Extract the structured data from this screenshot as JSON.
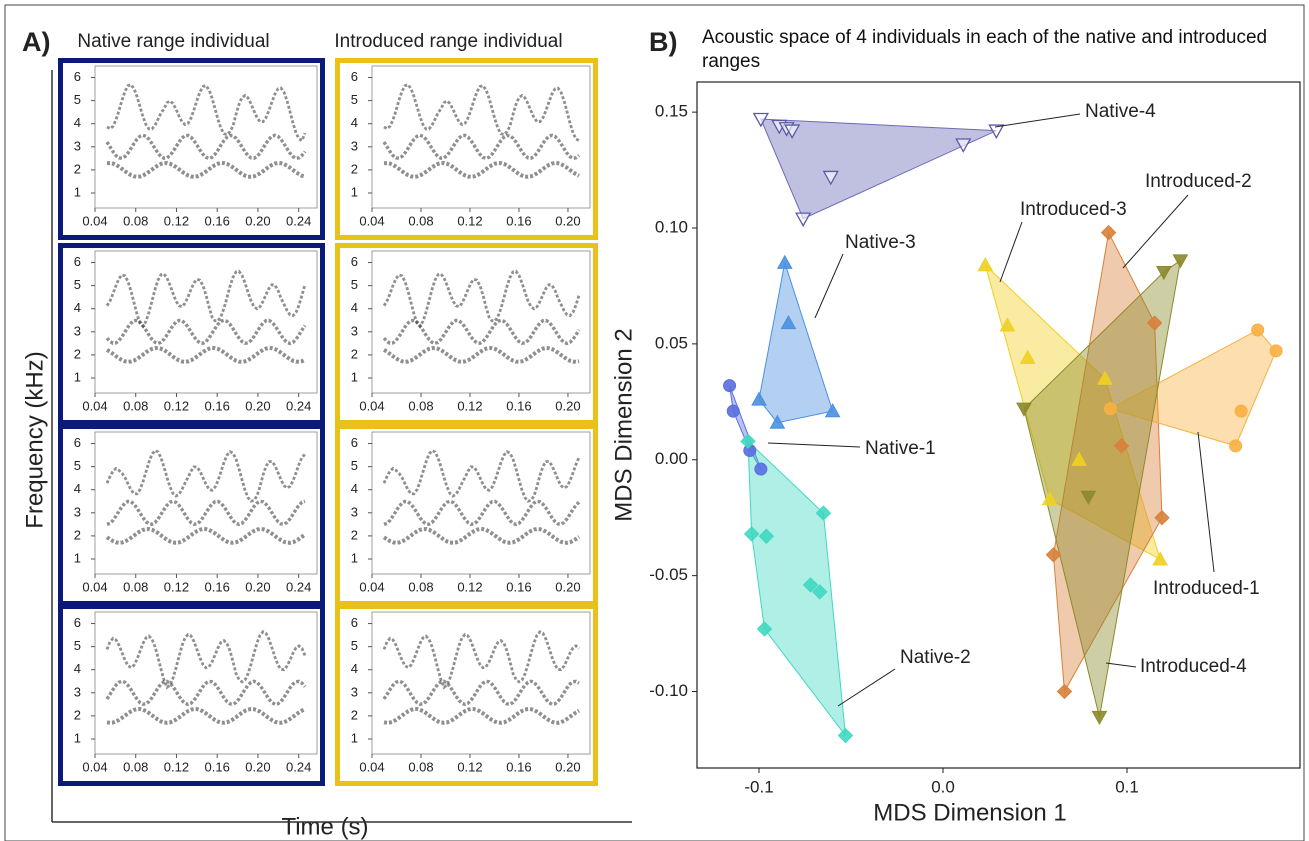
{
  "chart_data": [
    {
      "type": "spectrogram_grid",
      "label": "A)",
      "ylabel": "Frequency (kHz)",
      "xlabel": "Time (s)",
      "columns": [
        {
          "title": "Native range individual",
          "color": "#0b1a78",
          "xlim": [
            0.04,
            0.258
          ],
          "xticks": [
            0.04,
            0.08,
            0.12,
            0.16,
            {
              "value": 0.2,
              "label": "0.20"
            },
            0.24
          ],
          "ylim": [
            0.35,
            6.5
          ],
          "yticks": [
            1,
            2,
            3,
            4,
            5,
            6
          ]
        },
        {
          "title": "Introduced range individual",
          "color": "#e8c21a",
          "xlim": [
            0.04,
            0.218
          ],
          "xticks": [
            0.04,
            0.08,
            0.12,
            0.16,
            {
              "value": 0.2,
              "label": "0.20"
            }
          ],
          "ylim": [
            0.35,
            6.5
          ],
          "yticks": [
            1,
            2,
            3,
            4,
            5,
            6
          ]
        }
      ]
    },
    {
      "type": "scatter",
      "label": "B)",
      "title": "Acoustic space of 4 individuals in each of the native and introduced ranges",
      "xlabel": "MDS Dimension 1",
      "ylabel": "MDS Dimension 2",
      "xlim": [
        -0.1337,
        0.194
      ],
      "ylim": [
        -0.133,
        0.163
      ],
      "xticks": [
        {
          "value": -0.1,
          "label": "-0.1"
        },
        {
          "value": 0,
          "label": "0.0"
        },
        {
          "value": 0.1,
          "label": "0.1"
        }
      ],
      "yticks": [
        {
          "value": -0.1,
          "label": "-0.10"
        },
        {
          "value": -0.05,
          "label": "-0.05"
        },
        {
          "value": 0,
          "label": "0.00"
        },
        {
          "value": 0.05,
          "label": "0.05"
        },
        {
          "value": 0.1,
          "label": "0.10"
        },
        {
          "value": 0.15,
          "label": "0.15"
        }
      ],
      "series": [
        {
          "name": "Native-4",
          "color": "#6a6ab8",
          "marker": "triangle-down-open",
          "x": [
            -0.099,
            -0.089,
            -0.085,
            -0.082,
            -0.061,
            -0.076,
            0.011,
            0.029
          ],
          "y": [
            0.147,
            0.144,
            0.143,
            0.142,
            0.122,
            0.104,
            0.136,
            0.142
          ]
        },
        {
          "name": "Native-3",
          "color": "#4a90e0",
          "marker": "triangle-up",
          "x": [
            -0.086,
            -0.1,
            -0.09,
            -0.06,
            -0.084
          ],
          "y": [
            0.085,
            0.026,
            0.016,
            0.021,
            0.059
          ]
        },
        {
          "name": "Native-1",
          "color": "#5a6ee0",
          "marker": "circle",
          "x": [
            -0.116,
            -0.114,
            -0.105,
            -0.099
          ],
          "y": [
            0.032,
            0.021,
            0.004,
            -0.004
          ]
        },
        {
          "name": "Native-2",
          "color": "#40d8c0",
          "marker": "diamond",
          "x": [
            -0.106,
            -0.104,
            -0.096,
            -0.065,
            -0.072,
            -0.067,
            -0.097,
            -0.053
          ],
          "y": [
            0.008,
            -0.032,
            -0.033,
            -0.023,
            -0.054,
            -0.057,
            -0.073,
            -0.119
          ]
        },
        {
          "name": "Introduced-3",
          "color": "#f0d020",
          "marker": "triangle-up",
          "x": [
            0.023,
            0.035,
            0.046,
            0.058,
            0.074,
            0.088,
            0.118
          ],
          "y": [
            0.084,
            0.058,
            0.044,
            -0.017,
            0.0,
            0.035,
            -0.043
          ]
        },
        {
          "name": "Introduced-2",
          "color": "#d8803a",
          "marker": "diamond",
          "x": [
            0.09,
            0.115,
            0.097,
            0.119,
            0.06,
            0.066
          ],
          "y": [
            0.098,
            0.059,
            0.006,
            -0.025,
            -0.041,
            -0.1
          ]
        },
        {
          "name": "Introduced-1",
          "color": "#f8b040",
          "marker": "circle",
          "x": [
            0.171,
            0.181,
            0.162,
            0.159,
            0.091
          ],
          "y": [
            0.056,
            0.047,
            0.021,
            0.006,
            0.022
          ]
        },
        {
          "name": "Introduced-4",
          "color": "#8b8a2a",
          "marker": "triangle-down",
          "x": [
            0.129,
            0.12,
            0.044,
            0.079,
            0.085
          ],
          "y": [
            0.086,
            0.081,
            0.022,
            -0.016,
            -0.111
          ]
        }
      ]
    }
  ]
}
